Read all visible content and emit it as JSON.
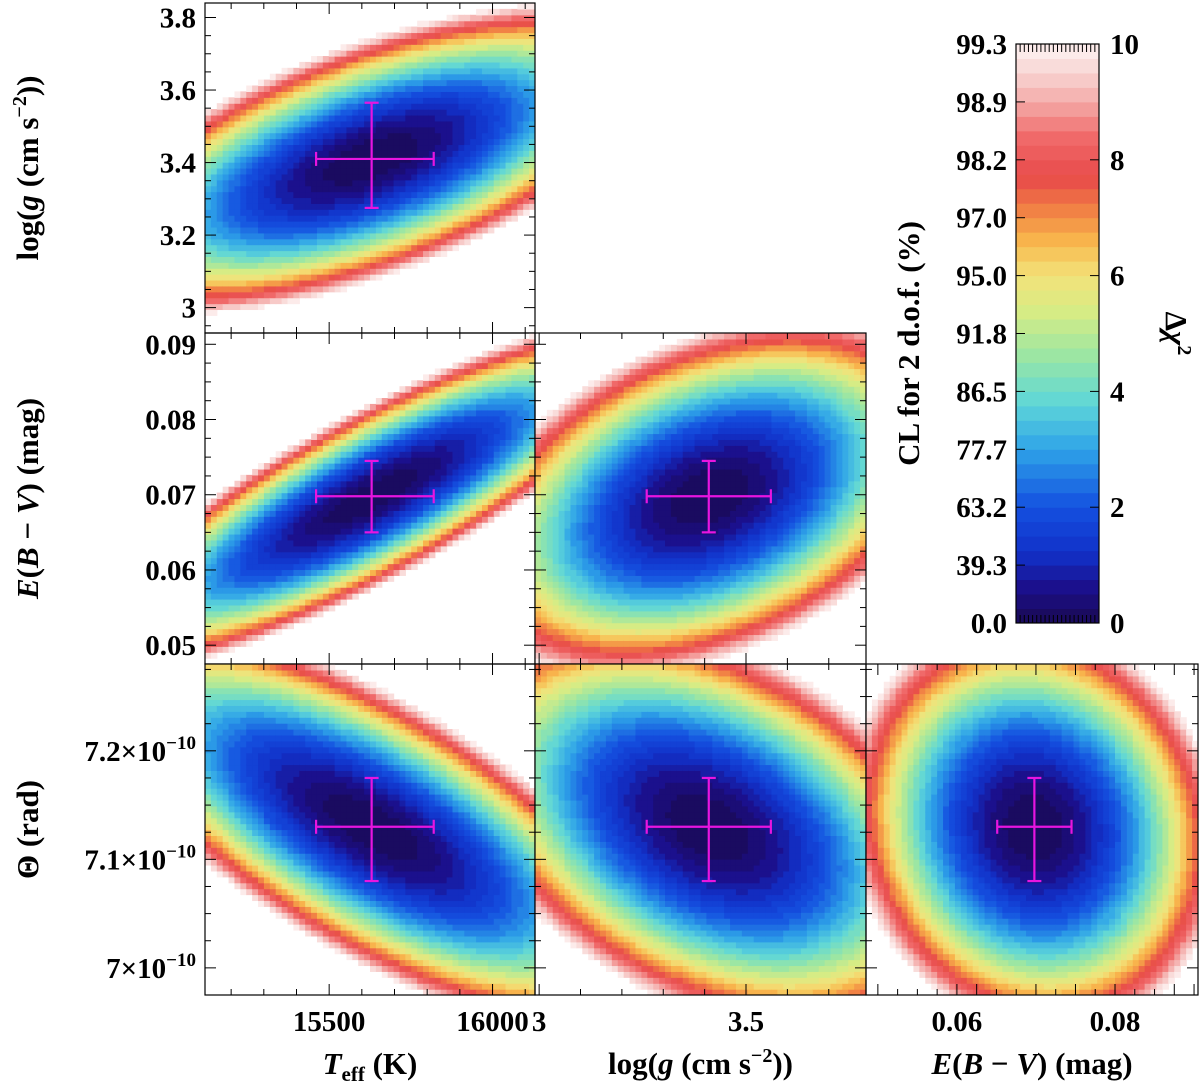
{
  "chart_data": [
    {
      "type": "heatmap",
      "panel": "Teff-logg",
      "x_param": "Teff",
      "y_param": "logg",
      "xlim": [
        15120,
        16130
      ],
      "ylim": [
        2.93,
        3.84
      ],
      "yticks": [
        3.0,
        3.2,
        3.4,
        3.6,
        3.8
      ],
      "ytick_labels": [
        "3",
        "3.2",
        "3.4",
        "3.6",
        "3.8"
      ],
      "ylabel_parts": [
        "log(",
        "g",
        " (cm s",
        "−2",
        "))"
      ],
      "best_fit": {
        "x": 15630,
        "y": 3.41
      },
      "x_err": [
        15460,
        15820
      ],
      "y_err": [
        3.275,
        3.565
      ],
      "contour": {
        "sx": 290,
        "sy": 0.135,
        "rho": 0.62,
        "chi2_max": 10
      }
    },
    {
      "type": "heatmap",
      "panel": "Teff-EBV",
      "x_param": "Teff",
      "y_param": "EBV",
      "xlim": [
        15120,
        16130
      ],
      "ylim": [
        0.0475,
        0.0915
      ],
      "yticks": [
        0.05,
        0.06,
        0.07,
        0.08,
        0.09
      ],
      "ytick_labels": [
        "0.05",
        "0.06",
        "0.07",
        "0.08",
        "0.09"
      ],
      "ylabel_parts": [
        "E",
        "(",
        "B",
        " − ",
        "V",
        ") (mag)"
      ],
      "best_fit": {
        "x": 15630,
        "y": 0.0698
      },
      "x_err": [
        15460,
        15820
      ],
      "y_err": [
        0.065,
        0.0745
      ],
      "contour": {
        "sx": 290,
        "sy": 0.0075,
        "rho": 0.85,
        "chi2_max": 10
      }
    },
    {
      "type": "heatmap",
      "panel": "logg-EBV",
      "x_param": "logg",
      "y_param": "EBV",
      "xlim": [
        2.99,
        3.79
      ],
      "ylim": [
        0.0475,
        0.0915
      ],
      "best_fit": {
        "x": 3.41,
        "y": 0.0698
      },
      "x_err": [
        3.26,
        3.56
      ],
      "y_err": [
        0.065,
        0.0745
      ],
      "contour": {
        "sx": 0.19,
        "sy": 0.0075,
        "rho": 0.38,
        "chi2_max": 10
      }
    },
    {
      "type": "heatmap",
      "panel": "Teff-Theta",
      "x_param": "Teff",
      "y_param": "Theta",
      "xlim": [
        15120,
        16130
      ],
      "ylim": [
        6.975e-10,
        7.28e-10
      ],
      "xticks": [
        15500,
        16000
      ],
      "xtick_labels": [
        "15500",
        "16000"
      ],
      "yticks": [
        7e-10,
        7.1e-10,
        7.2e-10
      ],
      "ytick_labels": [
        {
          "m": "7×10",
          "e": "−10"
        },
        {
          "m": "7.1×10",
          "e": "−10"
        },
        {
          "m": "7.2×10",
          "e": "−10"
        }
      ],
      "ylabel_parts": [
        "Θ (rad)"
      ],
      "xlabel_parts": [
        "T",
        "eff",
        " (K)"
      ],
      "best_fit": {
        "x": 15630,
        "y": 7.13e-10
      },
      "x_err": [
        15460,
        15820
      ],
      "y_err": [
        7.08e-10,
        7.175e-10
      ],
      "contour": {
        "sx": 290,
        "sy": 6e-12,
        "rho": -0.72,
        "chi2_max": 10
      }
    },
    {
      "type": "heatmap",
      "panel": "logg-Theta",
      "x_param": "logg",
      "y_param": "Theta",
      "xlim": [
        2.99,
        3.79
      ],
      "ylim": [
        6.975e-10,
        7.28e-10
      ],
      "xticks": [
        3.0,
        3.5
      ],
      "xtick_labels": [
        "3",
        "3.5"
      ],
      "xlabel_parts": [
        "log(",
        "g",
        " (cm s",
        "−2",
        "))"
      ],
      "best_fit": {
        "x": 3.41,
        "y": 7.13e-10
      },
      "x_err": [
        3.26,
        3.56
      ],
      "y_err": [
        7.08e-10,
        7.175e-10
      ],
      "contour": {
        "sx": 0.2,
        "sy": 6e-12,
        "rho": -0.4,
        "chi2_max": 10
      }
    },
    {
      "type": "heatmap",
      "panel": "EBV-Theta",
      "x_param": "EBV",
      "y_param": "Theta",
      "xlim": [
        0.0485,
        0.0905
      ],
      "ylim": [
        6.975e-10,
        7.28e-10
      ],
      "xticks": [
        0.06,
        0.08
      ],
      "xtick_labels": [
        "0.06",
        "0.08"
      ],
      "xlabel_parts": [
        "E",
        "(",
        "B",
        " − ",
        "V",
        ") (mag)"
      ],
      "best_fit": {
        "x": 0.0698,
        "y": 7.13e-10
      },
      "x_err": [
        0.0651,
        0.0745
      ],
      "y_err": [
        7.08e-10,
        7.175e-10
      ],
      "contour": {
        "sx": 0.0075,
        "sy": 6e-12,
        "rho": -0.1,
        "chi2_max": 10
      }
    }
  ],
  "colorbar": {
    "label_right_parts": [
      "Δ",
      "χ",
      "2"
    ],
    "label_left": "CL for 2 d.o.f. (%)",
    "range": [
      0,
      10
    ],
    "right_ticks": [
      0,
      2,
      4,
      6,
      8,
      10
    ],
    "right_tick_labels": [
      "0",
      "2",
      "4",
      "6",
      "8",
      "10"
    ],
    "left_tick_values": [
      0,
      1,
      2,
      3,
      4,
      5,
      6,
      7,
      8,
      9,
      10
    ],
    "left_tick_labels": [
      "0.0",
      "39.3",
      "63.2",
      "77.7",
      "86.5",
      "91.8",
      "95.0",
      "97.0",
      "98.2",
      "98.9",
      "99.3"
    ],
    "levels": 40,
    "stops": [
      {
        "v": 0.0,
        "c": "#1a0a55"
      },
      {
        "v": 0.6,
        "c": "#1b0f8a"
      },
      {
        "v": 1.2,
        "c": "#1230c8"
      },
      {
        "v": 2.0,
        "c": "#1450e0"
      },
      {
        "v": 3.0,
        "c": "#2ea3e8"
      },
      {
        "v": 3.8,
        "c": "#5ed6d8"
      },
      {
        "v": 4.6,
        "c": "#9ae6a4"
      },
      {
        "v": 5.4,
        "c": "#d8ec84"
      },
      {
        "v": 6.0,
        "c": "#f3e27a"
      },
      {
        "v": 6.6,
        "c": "#f8b64c"
      },
      {
        "v": 7.2,
        "c": "#f07a44"
      },
      {
        "v": 7.7,
        "c": "#e84a4a"
      },
      {
        "v": 8.4,
        "c": "#f06a6a"
      },
      {
        "v": 9.0,
        "c": "#f4aaa8"
      },
      {
        "v": 9.5,
        "c": "#f8d4d2"
      },
      {
        "v": 10.0,
        "c": "#fdf2f2"
      }
    ]
  },
  "colors": {
    "errorbar": "#e815e0",
    "frame": "#000000"
  }
}
